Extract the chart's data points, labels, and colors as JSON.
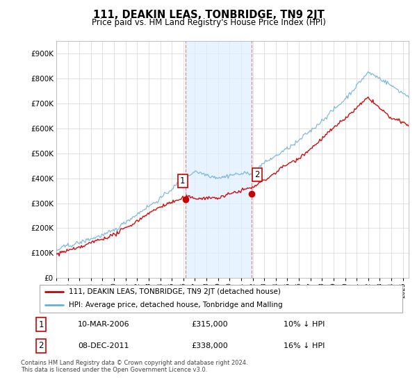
{
  "title": "111, DEAKIN LEAS, TONBRIDGE, TN9 2JT",
  "subtitle": "Price paid vs. HM Land Registry's House Price Index (HPI)",
  "legend_line1": "111, DEAKIN LEAS, TONBRIDGE, TN9 2JT (detached house)",
  "legend_line2": "HPI: Average price, detached house, Tonbridge and Malling",
  "transaction1_date": "10-MAR-2006",
  "transaction1_price": "£315,000",
  "transaction1_hpi": "10% ↓ HPI",
  "transaction2_date": "08-DEC-2011",
  "transaction2_price": "£338,000",
  "transaction2_hpi": "16% ↓ HPI",
  "footer": "Contains HM Land Registry data © Crown copyright and database right 2024.\nThis data is licensed under the Open Government Licence v3.0.",
  "hpi_color": "#6baed6",
  "price_color": "#cc0000",
  "marker_color": "#cc0000",
  "shade_color": "#ddeeff",
  "transaction1_x": 2006.19,
  "transaction2_x": 2011.93,
  "ylim": [
    0,
    950000
  ],
  "yticks": [
    0,
    100000,
    200000,
    300000,
    400000,
    500000,
    600000,
    700000,
    800000,
    900000
  ],
  "fig_width": 6.0,
  "fig_height": 5.6,
  "dpi": 100
}
